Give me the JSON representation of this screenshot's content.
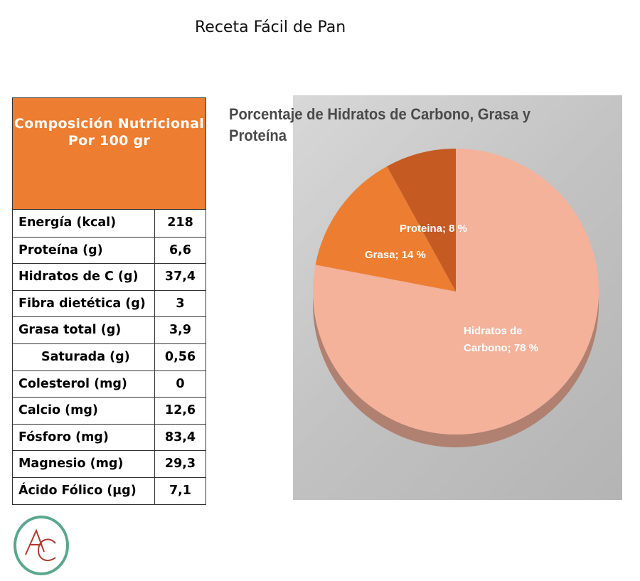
{
  "page_title": "Receta Fácil de Pan",
  "table": {
    "header_line1": "Composición Nutricional",
    "header_line2": "Por 100 gr",
    "rows": [
      {
        "name": "Energía (kcal)",
        "value": "218"
      },
      {
        "name": "Proteína (g)",
        "value": "6,6"
      },
      {
        "name": "Hidratos de C (g)",
        "value": "37,4"
      },
      {
        "name": "Fibra dietética (g)",
        "value": "3"
      },
      {
        "name": "Grasa total (g)",
        "value": "3,9"
      },
      {
        "name": "Saturada (g)",
        "value": "0,56"
      },
      {
        "name": "Colesterol (mg)",
        "value": "0"
      },
      {
        "name": "Calcio (mg)",
        "value": "12,6"
      },
      {
        "name": "Fósforo (mg)",
        "value": "83,4"
      },
      {
        "name": "Magnesio (mg)",
        "value": "29,3"
      },
      {
        "name": "Ácido Fólico (µg)",
        "value": "7,1"
      }
    ]
  },
  "chart_data": {
    "type": "pie",
    "title_line1": "Porcentaje de Hidratos de Carbono, Grasa y",
    "title_line2": "Proteína",
    "slices": [
      {
        "label": "Hidratos de Carbono",
        "label_line1": "Hidratos de",
        "label_line2": "Carbono; 78 %",
        "value": 78,
        "color": "#F4B29B"
      },
      {
        "label": "Grasa",
        "label_line1": "Grasa; 14 %",
        "value": 14,
        "color": "#ED7D31"
      },
      {
        "label": "Proteina",
        "label_line1": "Proteina; 8 %",
        "value": 8,
        "color": "#C55A22"
      }
    ]
  },
  "logo": {
    "letters": "AC",
    "ring_color": "#5aa88c",
    "letter_color": "#b03a2e"
  }
}
